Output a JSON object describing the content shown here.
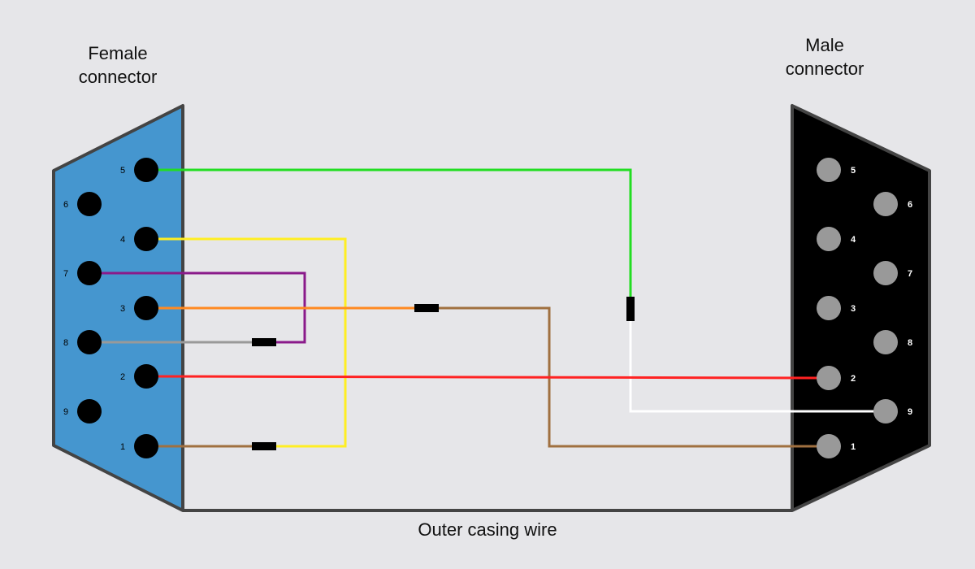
{
  "labels": {
    "female_line1": "Female",
    "female_line2": "connector",
    "male_line1": "Male",
    "male_line2": "connector",
    "casing": "Outer casing wire"
  },
  "colors": {
    "background": "#e6e6e9",
    "female_body": "#4596cf",
    "male_body": "#000000",
    "outline": "#444444",
    "female_pin": "#000000",
    "male_pin": "#999999",
    "female_pin_label": "#000000",
    "male_pin_label": "#ffffff",
    "splice": "#000000"
  },
  "female_pins": [
    {
      "num": "5"
    },
    {
      "num": "6"
    },
    {
      "num": "4"
    },
    {
      "num": "7"
    },
    {
      "num": "3"
    },
    {
      "num": "8"
    },
    {
      "num": "2"
    },
    {
      "num": "9"
    },
    {
      "num": "1"
    }
  ],
  "male_pins": [
    {
      "num": "5"
    },
    {
      "num": "6"
    },
    {
      "num": "4"
    },
    {
      "num": "7"
    },
    {
      "num": "3"
    },
    {
      "num": "8"
    },
    {
      "num": "2"
    },
    {
      "num": "9"
    },
    {
      "num": "1"
    }
  ],
  "wires": [
    {
      "name": "wire-female5-green",
      "color": "#22dd22"
    },
    {
      "name": "wire-white-to-male9",
      "color": "#ffffff"
    },
    {
      "name": "wire-female4-yellow",
      "color": "#ffee22"
    },
    {
      "name": "wire-female7-purple",
      "color": "#8a1a8a"
    },
    {
      "name": "wire-female8-gray",
      "color": "#999999"
    },
    {
      "name": "wire-female3-orange",
      "color": "#ff8a22"
    },
    {
      "name": "wire-brown-to-male1",
      "color": "#a07040"
    },
    {
      "name": "wire-female2-red-to-male2",
      "color": "#ff2222"
    },
    {
      "name": "wire-female1-brown",
      "color": "#a07040"
    }
  ]
}
